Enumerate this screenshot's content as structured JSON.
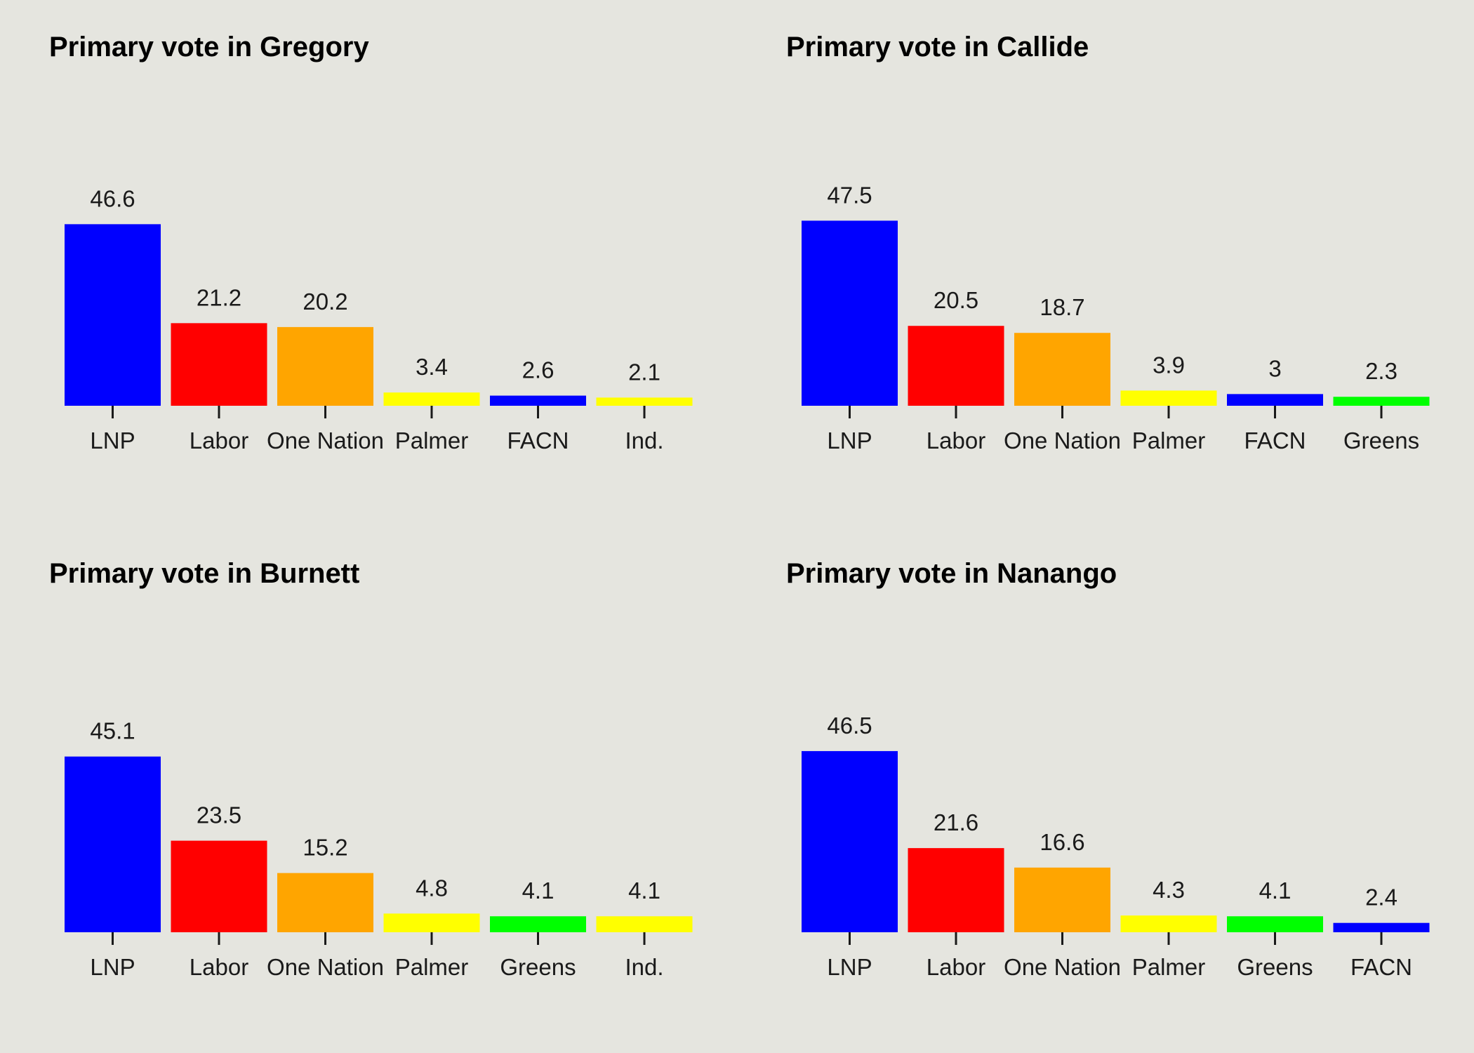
{
  "chart_data": [
    {
      "type": "bar",
      "title": "Primary vote in Gregory",
      "categories": [
        "LNP",
        "Labor",
        "One Nation",
        "Palmer",
        "FACN",
        "Ind."
      ],
      "values": [
        46.6,
        21.2,
        20.2,
        3.4,
        2.6,
        2.1
      ],
      "value_labels": [
        "46.6",
        "21.2",
        "20.2",
        "3.4",
        "2.6",
        "2.1"
      ],
      "colors": [
        "#0000ff",
        "#ff0000",
        "#ffa500",
        "#ffff00",
        "#0000ff",
        "#ffff00"
      ],
      "ylim": [
        0,
        50
      ],
      "grid": false,
      "legend": "none"
    },
    {
      "type": "bar",
      "title": "Primary vote in Callide",
      "categories": [
        "LNP",
        "Labor",
        "One Nation",
        "Palmer",
        "FACN",
        "Greens"
      ],
      "values": [
        47.5,
        20.5,
        18.7,
        3.9,
        3,
        2.3
      ],
      "value_labels": [
        "47.5",
        "20.5",
        "18.7",
        "3.9",
        "3",
        "2.3"
      ],
      "colors": [
        "#0000ff",
        "#ff0000",
        "#ffa500",
        "#ffff00",
        "#0000ff",
        "#00ff00"
      ],
      "ylim": [
        0,
        50
      ],
      "grid": false,
      "legend": "none"
    },
    {
      "type": "bar",
      "title": "Primary vote in Burnett",
      "categories": [
        "LNP",
        "Labor",
        "One Nation",
        "Palmer",
        "Greens",
        "Ind."
      ],
      "values": [
        45.1,
        23.5,
        15.2,
        4.8,
        4.1,
        4.1
      ],
      "value_labels": [
        "45.1",
        "23.5",
        "15.2",
        "4.8",
        "4.1",
        "4.1"
      ],
      "colors": [
        "#0000ff",
        "#ff0000",
        "#ffa500",
        "#ffff00",
        "#00ff00",
        "#ffff00"
      ],
      "ylim": [
        0,
        50
      ],
      "grid": false,
      "legend": "none"
    },
    {
      "type": "bar",
      "title": "Primary vote in Nanango",
      "categories": [
        "LNP",
        "Labor",
        "One Nation",
        "Palmer",
        "Greens",
        "FACN"
      ],
      "values": [
        46.5,
        21.6,
        16.6,
        4.3,
        4.1,
        2.4
      ],
      "value_labels": [
        "46.5",
        "21.6",
        "16.6",
        "4.3",
        "4.1",
        "2.4"
      ],
      "colors": [
        "#0000ff",
        "#ff0000",
        "#ffa500",
        "#ffff00",
        "#00ff00",
        "#0000ff"
      ],
      "ylim": [
        0,
        50
      ],
      "grid": false,
      "legend": "none"
    }
  ]
}
